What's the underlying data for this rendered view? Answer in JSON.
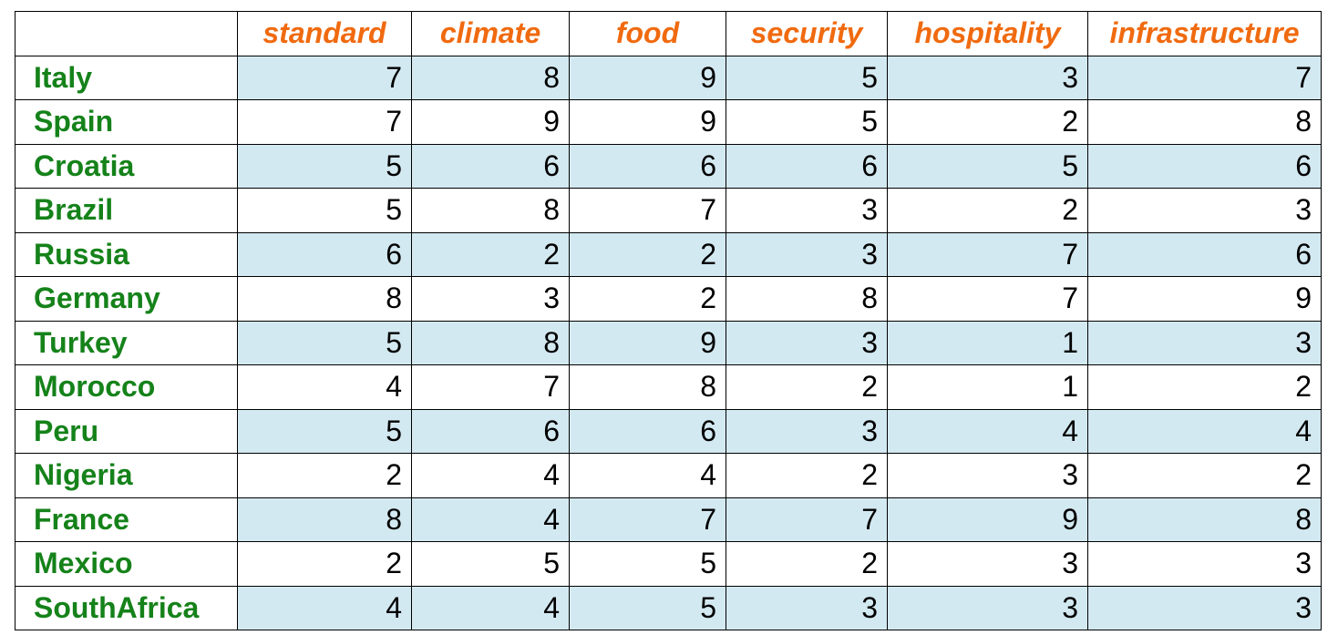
{
  "chart_data": {
    "type": "table",
    "columns": [
      "standard",
      "climate",
      "food",
      "security",
      "hospitality",
      "infrastructure"
    ],
    "rows": [
      {
        "label": "Italy",
        "values": [
          7,
          8,
          9,
          5,
          3,
          7
        ]
      },
      {
        "label": "Spain",
        "values": [
          7,
          9,
          9,
          5,
          2,
          8
        ]
      },
      {
        "label": "Croatia",
        "values": [
          5,
          6,
          6,
          6,
          5,
          6
        ]
      },
      {
        "label": "Brazil",
        "values": [
          5,
          8,
          7,
          3,
          2,
          3
        ]
      },
      {
        "label": "Russia",
        "values": [
          6,
          2,
          2,
          3,
          7,
          6
        ]
      },
      {
        "label": "Germany",
        "values": [
          8,
          3,
          2,
          8,
          7,
          9
        ]
      },
      {
        "label": "Turkey",
        "values": [
          5,
          8,
          9,
          3,
          1,
          3
        ]
      },
      {
        "label": "Morocco",
        "values": [
          4,
          7,
          8,
          2,
          1,
          2
        ]
      },
      {
        "label": "Peru",
        "values": [
          5,
          6,
          6,
          3,
          4,
          4
        ]
      },
      {
        "label": "Nigeria",
        "values": [
          2,
          4,
          4,
          2,
          3,
          2
        ]
      },
      {
        "label": "France",
        "values": [
          8,
          4,
          7,
          7,
          9,
          8
        ]
      },
      {
        "label": "Mexico",
        "values": [
          2,
          5,
          5,
          2,
          3,
          3
        ]
      },
      {
        "label": "SouthAfrica",
        "values": [
          4,
          4,
          5,
          3,
          3,
          3
        ]
      }
    ]
  },
  "colors": {
    "header_text": "#f06a0f",
    "row_label_text": "#15821a",
    "value_text": "#000000",
    "shaded_row_fill": "#d3e9f1",
    "border": "#000000"
  }
}
